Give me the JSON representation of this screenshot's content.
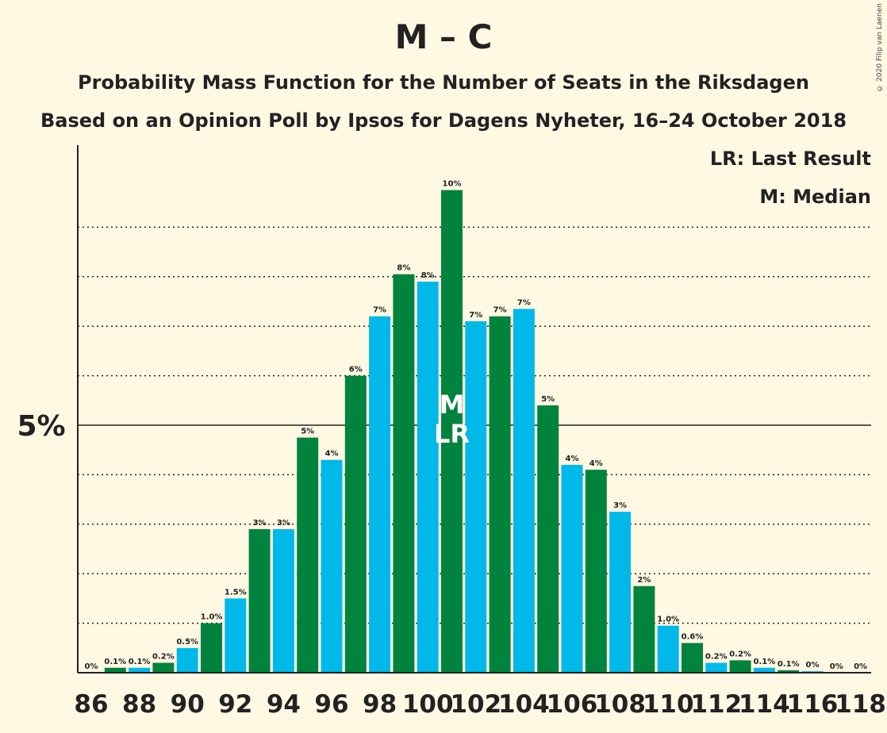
{
  "title": "M – C",
  "subtitle1": "Probability Mass Function for the Number of Seats in the Riksdagen",
  "subtitle2": "Based on an Opinion Poll by Ipsos for Dagens Nyheter, 16–24 October 2018",
  "copyright": "© 2020 Filip van Laenen",
  "legend": {
    "lr": "LR: Last Result",
    "m": "M: Median"
  },
  "colors": {
    "background": "#FFF8E3",
    "green": "#00843D",
    "blue": "#00B9E8",
    "text": "#222222"
  },
  "chart_data": {
    "type": "bar",
    "x": [
      86,
      87,
      88,
      89,
      90,
      91,
      92,
      93,
      94,
      95,
      96,
      97,
      98,
      99,
      100,
      101,
      102,
      103,
      104,
      105,
      106,
      107,
      108,
      109,
      110,
      111,
      112,
      113,
      114,
      115,
      116,
      117,
      118
    ],
    "values": [
      0.0,
      0.1,
      0.1,
      0.2,
      0.5,
      1.0,
      1.5,
      2.9,
      2.9,
      4.75,
      4.3,
      6.0,
      7.2,
      8.05,
      7.9,
      9.75,
      7.1,
      7.2,
      7.35,
      5.4,
      4.2,
      4.1,
      3.25,
      1.75,
      0.95,
      0.6,
      0.2,
      0.25,
      0.1,
      0.05,
      0.03,
      0.0,
      0.0
    ],
    "data_labels": [
      "0%",
      "0.1%",
      "0.1%",
      "0.2%",
      "0.5%",
      "1.0%",
      "1.5%",
      "3%",
      "3%",
      "5%",
      "4%",
      "6%",
      "7%",
      "8%",
      "8%",
      "10%",
      "7%",
      "7%",
      "7%",
      "5%",
      "4%",
      "4%",
      "3%",
      "2%",
      "1.0%",
      "0.6%",
      "0.2%",
      "0.2%",
      "0.1%",
      "0.1%",
      "0%",
      "0%",
      "0%"
    ],
    "x_tick_labels": [
      "86",
      "88",
      "90",
      "92",
      "94",
      "96",
      "98",
      "100",
      "102",
      "104",
      "106",
      "108",
      "110",
      "112",
      "114",
      "116",
      "118"
    ],
    "y_tick_label": "5%",
    "y_tick_value": 5,
    "ylim": [
      0,
      10.6
    ],
    "gridlines": [
      1,
      2,
      3,
      4,
      6,
      7,
      8,
      9
    ],
    "median_seat": 101,
    "last_result_seat": 101,
    "median_label": "M",
    "last_result_label": "LR"
  }
}
